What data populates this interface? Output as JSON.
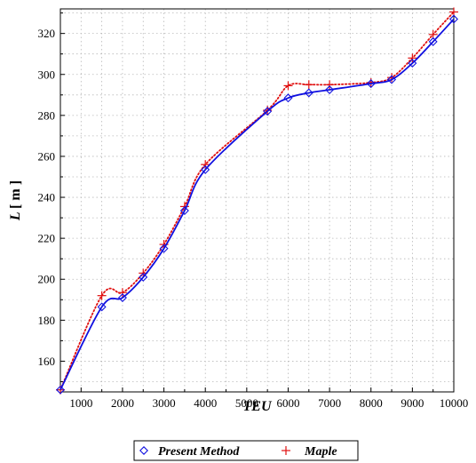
{
  "chart_data": {
    "type": "line",
    "xlabel": "TEU",
    "ylabel_main": "L",
    "ylabel_unit": "[ m ]",
    "xlim": [
      500,
      10000
    ],
    "ylim": [
      145,
      332
    ],
    "xticks": [
      1000,
      2000,
      3000,
      4000,
      5000,
      6000,
      7000,
      8000,
      9000,
      10000
    ],
    "yticks": [
      160,
      180,
      200,
      220,
      240,
      260,
      280,
      300,
      320
    ],
    "grid": true,
    "legend_position": "bottom-center",
    "series": [
      {
        "name": "Present Method",
        "marker": "diamond",
        "line": "solid",
        "color": "#1010e0",
        "x": [
          500,
          1500,
          2000,
          2500,
          3000,
          3500,
          4000,
          5500,
          6000,
          6500,
          7000,
          8000,
          8500,
          9000,
          9500,
          10000
        ],
        "y": [
          146,
          186.5,
          191,
          201,
          215,
          233.5,
          253.5,
          282,
          288.5,
          291,
          292.5,
          295.5,
          297.5,
          305.5,
          316,
          327
        ]
      },
      {
        "name": "Maple",
        "marker": "plus",
        "line": "dotted",
        "color": "#e01010",
        "x": [
          500,
          1500,
          2000,
          2500,
          3000,
          3500,
          4000,
          5500,
          6000,
          6500,
          7000,
          8000,
          8500,
          9000,
          9500,
          10000
        ],
        "y": [
          146,
          192,
          193.5,
          203,
          217,
          235.5,
          256,
          282.5,
          294.5,
          295,
          295,
          296,
          298.5,
          308,
          319.5,
          330.5
        ]
      }
    ]
  }
}
